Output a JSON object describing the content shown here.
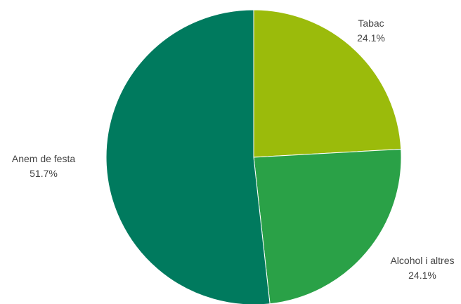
{
  "chart_data": {
    "type": "pie",
    "labels": [
      "Tabac",
      "Alcohol i altres",
      "Anem de festa"
    ],
    "values": [
      24.1,
      24.1,
      51.7
    ],
    "value_labels": [
      "24.1%",
      "24.1%",
      "51.7%"
    ],
    "colors": [
      "#9BBB0B",
      "#2AA147",
      "#007A5E"
    ],
    "start_angle_deg": 0,
    "direction": "clockwise",
    "title": ""
  }
}
